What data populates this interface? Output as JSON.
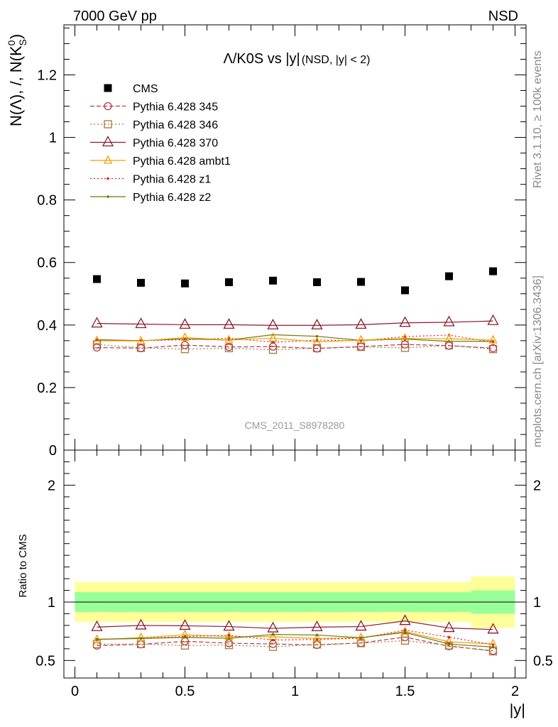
{
  "header": {
    "energy_label": "7000 GeV pp",
    "process_label": "NSD"
  },
  "side_labels": {
    "rivet": "Rivet 3.1.10, ≥ 100k events",
    "mcplots": "mcplots.cern.ch [arXiv:1306.3436]"
  },
  "chart_data": [
    {
      "type": "scatter",
      "title_main": "Λ/K0S vs |y|",
      "title_sub": "(NSD, |y| < 2)",
      "ylabel": "N(Λ), /, N(K⁰S)",
      "ylabel_parts": {
        "a": "N(Λ), /, N(K",
        "sup": "0",
        "sub": "S",
        "b": ")"
      },
      "analysis_label": "CMS_2011_S8978280",
      "xlim": [
        -0.05,
        2.05
      ],
      "ylim": [
        0,
        1.36
      ],
      "yticks": [
        0,
        0.2,
        0.4,
        0.6,
        0.8,
        1,
        1.2
      ],
      "ytick_labels": [
        "0",
        "0.2",
        "0.4",
        "0.6",
        "0.8",
        "1",
        "1.2"
      ],
      "x": [
        0.1,
        0.3,
        0.5,
        0.7,
        0.9,
        1.1,
        1.3,
        1.5,
        1.7,
        1.9
      ],
      "series": [
        {
          "name": "CMS",
          "color": "#000000",
          "marker": "square-filled",
          "line": "none",
          "values": [
            0.547,
            0.535,
            0.533,
            0.537,
            0.542,
            0.537,
            0.538,
            0.511,
            0.556,
            0.572
          ]
        },
        {
          "name": "Pythia 6.428 345",
          "color": "#b03a48",
          "marker": "circle-open",
          "line": "dashed",
          "values": [
            0.328,
            0.326,
            0.336,
            0.33,
            0.331,
            0.325,
            0.331,
            0.338,
            0.334,
            0.326
          ]
        },
        {
          "name": "Pythia 6.428 346",
          "color": "#a8773a",
          "marker": "square-open",
          "line": "dotted",
          "values": [
            0.338,
            0.327,
            0.323,
            0.326,
            0.321,
            0.326,
            0.33,
            0.327,
            0.335,
            0.323
          ]
        },
        {
          "name": "Pythia 6.428 370",
          "color": "#8b1a2b",
          "marker": "triangle-open",
          "line": "solid",
          "values": [
            0.405,
            0.403,
            0.401,
            0.401,
            0.399,
            0.399,
            0.401,
            0.407,
            0.409,
            0.413
          ]
        },
        {
          "name": "Pythia 6.428 ambt1",
          "color": "#f0a000",
          "marker": "triangle-open-small",
          "line": "solid",
          "values": [
            0.35,
            0.349,
            0.36,
            0.352,
            0.358,
            0.346,
            0.352,
            0.357,
            0.356,
            0.352
          ]
        },
        {
          "name": "Pythia 6.428 z1",
          "color": "#e02020",
          "marker": "dot",
          "line": "dotted",
          "values": [
            0.352,
            0.35,
            0.353,
            0.358,
            0.345,
            0.352,
            0.35,
            0.363,
            0.368,
            0.345
          ]
        },
        {
          "name": "Pythia 6.428 z2",
          "color": "#6b7a10",
          "marker": "dot",
          "line": "solid",
          "values": [
            0.353,
            0.35,
            0.356,
            0.352,
            0.369,
            0.364,
            0.351,
            0.355,
            0.348,
            0.348
          ]
        }
      ],
      "legend": {
        "placement": "top-left"
      },
      "grid": false
    },
    {
      "type": "scatter",
      "ylabel": "Ratio to CMS",
      "xlabel": "|y|",
      "xlim": [
        -0.05,
        2.05
      ],
      "ylim": [
        0.35,
        2.3
      ],
      "xticks": [
        0,
        0.5,
        1,
        1.5,
        2
      ],
      "xtick_labels": [
        "0",
        "0.5",
        "1",
        "1.5",
        "2"
      ],
      "yticks": [
        0.5,
        1,
        2
      ],
      "ytick_labels": [
        "0.5",
        "1",
        "2"
      ],
      "reference_line": 1,
      "uncertainty_bands": [
        {
          "x_range": [
            0.0,
            1.8
          ],
          "inner": [
            0.915,
            1.085
          ],
          "outer": [
            0.83,
            1.17
          ]
        },
        {
          "x_range": [
            1.8,
            2.0
          ],
          "inner": [
            0.9,
            1.1
          ],
          "outer": [
            0.78,
            1.22
          ]
        }
      ],
      "band_colors": {
        "inner": "#99ff99",
        "outer": "#ffff99"
      },
      "x": [
        0.1,
        0.3,
        0.5,
        0.7,
        0.9,
        1.1,
        1.3,
        1.5,
        1.7,
        1.9
      ],
      "series": [
        {
          "name": "Pythia 6.428 345",
          "values": [
            0.627,
            0.638,
            0.664,
            0.648,
            0.641,
            0.633,
            0.65,
            0.7,
            0.622,
            0.583
          ]
        },
        {
          "name": "Pythia 6.428 346",
          "values": [
            0.64,
            0.64,
            0.628,
            0.632,
            0.617,
            0.637,
            0.648,
            0.67,
            0.628,
            0.578
          ]
        },
        {
          "name": "Pythia 6.428 370",
          "values": [
            0.786,
            0.8,
            0.797,
            0.79,
            0.775,
            0.785,
            0.79,
            0.838,
            0.778,
            0.765
          ]
        },
        {
          "name": "Pythia 6.428 ambt1",
          "values": [
            0.679,
            0.695,
            0.72,
            0.705,
            0.703,
            0.688,
            0.695,
            0.748,
            0.66,
            0.641
          ]
        },
        {
          "name": "Pythia 6.428 z1",
          "values": [
            0.681,
            0.69,
            0.705,
            0.715,
            0.675,
            0.68,
            0.69,
            0.76,
            0.7,
            0.635
          ]
        },
        {
          "name": "Pythia 6.428 z2",
          "values": [
            0.682,
            0.688,
            0.698,
            0.69,
            0.723,
            0.718,
            0.695,
            0.74,
            0.64,
            0.615
          ]
        }
      ]
    }
  ]
}
